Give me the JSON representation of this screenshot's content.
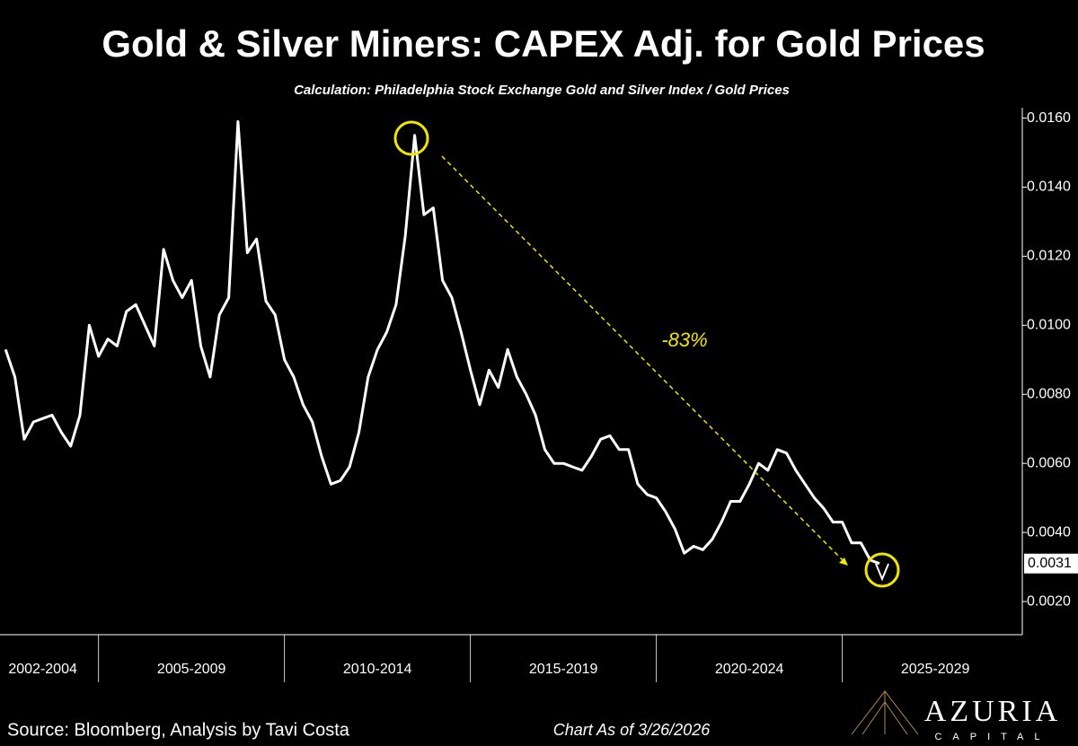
{
  "chart_data": {
    "type": "line",
    "title": "Gold & Silver Miners: CAPEX Adj. for Gold Prices",
    "subtitle": "Calculation: Philadelphia Stock Exchange Gold and Silver Index / Gold Prices",
    "annotation": "-83%",
    "color": "#ffffff",
    "x": [
      2002.5,
      2002.75,
      2003.0,
      2003.25,
      2003.5,
      2003.75,
      2004.0,
      2004.25,
      2004.5,
      2004.75,
      2005.0,
      2005.25,
      2005.5,
      2005.75,
      2006.0,
      2006.25,
      2006.5,
      2006.75,
      2007.0,
      2007.25,
      2007.5,
      2007.75,
      2008.0,
      2008.25,
      2008.5,
      2008.75,
      2009.0,
      2009.25,
      2009.5,
      2009.75,
      2010.0,
      2010.25,
      2010.5,
      2010.75,
      2011.0,
      2011.25,
      2011.5,
      2011.75,
      2012.0,
      2012.25,
      2012.5,
      2012.75,
      2013.0,
      2013.25,
      2013.5,
      2013.75,
      2014.0,
      2014.25,
      2014.5,
      2014.75,
      2015.0,
      2015.25,
      2015.5,
      2015.75,
      2016.0,
      2016.25,
      2016.5,
      2016.75,
      2017.0,
      2017.25,
      2017.5,
      2017.75,
      2018.0,
      2018.25,
      2018.5,
      2018.75,
      2019.0,
      2019.25,
      2019.5,
      2019.75,
      2020.0,
      2020.25,
      2020.5,
      2020.75,
      2021.0,
      2021.25,
      2021.5,
      2021.75,
      2022.0,
      2022.25,
      2022.5,
      2022.75,
      2023.0,
      2023.25,
      2023.5,
      2023.75,
      2024.0,
      2024.25,
      2024.5,
      2024.75,
      2025.0,
      2025.25,
      2025.5,
      2025.75,
      2026.0
    ],
    "values": [
      0.0093,
      0.0085,
      0.0067,
      0.0072,
      0.0073,
      0.0074,
      0.0069,
      0.0065,
      0.0074,
      0.01,
      0.0091,
      0.0096,
      0.0094,
      0.0104,
      0.0106,
      0.01,
      0.0094,
      0.0122,
      0.0113,
      0.0108,
      0.0113,
      0.0094,
      0.0085,
      0.0103,
      0.0108,
      0.0159,
      0.0121,
      0.0125,
      0.0107,
      0.0103,
      0.009,
      0.0085,
      0.0077,
      0.0072,
      0.0062,
      0.0054,
      0.0055,
      0.0059,
      0.0069,
      0.0085,
      0.0093,
      0.0098,
      0.0106,
      0.0126,
      0.0155,
      0.0132,
      0.0134,
      0.0113,
      0.0108,
      0.0098,
      0.0087,
      0.0077,
      0.0087,
      0.0082,
      0.0093,
      0.0085,
      0.008,
      0.0074,
      0.0064,
      0.006,
      0.006,
      0.0059,
      0.0058,
      0.0062,
      0.0067,
      0.0068,
      0.0064,
      0.0064,
      0.0054,
      0.0051,
      0.005,
      0.0046,
      0.0041,
      0.0034,
      0.0036,
      0.0035,
      0.0038,
      0.0043,
      0.0049,
      0.0049,
      0.0054,
      0.006,
      0.0058,
      0.0064,
      0.0063,
      0.0058,
      0.0054,
      0.005,
      0.0047,
      0.0043,
      0.0043,
      0.0037,
      0.0037,
      0.0032,
      0.0031
    ],
    "xlim": [
      2002.35,
      2029.84
    ],
    "xticks": [
      {
        "value": 2003.5,
        "label": "2002-2004"
      },
      {
        "value": 2007.5,
        "label": "2005-2009"
      },
      {
        "value": 2012.5,
        "label": "2010-2014"
      },
      {
        "value": 2017.5,
        "label": "2015-2019"
      },
      {
        "value": 2022.5,
        "label": "2020-2024"
      },
      {
        "value": 2027.5,
        "label": "2025-2029"
      }
    ],
    "ylim": [
      0.00104,
      0.0163
    ],
    "yticks": [
      {
        "value": 0.002,
        "label": "0.0020"
      },
      {
        "value": 0.004,
        "label": "0.0040"
      },
      {
        "value": 0.006,
        "label": "0.0060"
      },
      {
        "value": 0.008,
        "label": "0.0080"
      },
      {
        "value": 0.01,
        "label": "0.0100"
      },
      {
        "value": 0.012,
        "label": "0.0120"
      },
      {
        "value": 0.014,
        "label": "0.0140"
      },
      {
        "value": 0.016,
        "label": "0.0160"
      }
    ],
    "y_axis_side": "right"
  },
  "source": "Source: Bloomberg, Analysis by Tavi Costa",
  "as_of": "Chart As of 3/26/2026",
  "logo": {
    "name": "AZURIA",
    "tagline": "CAPITAL"
  }
}
